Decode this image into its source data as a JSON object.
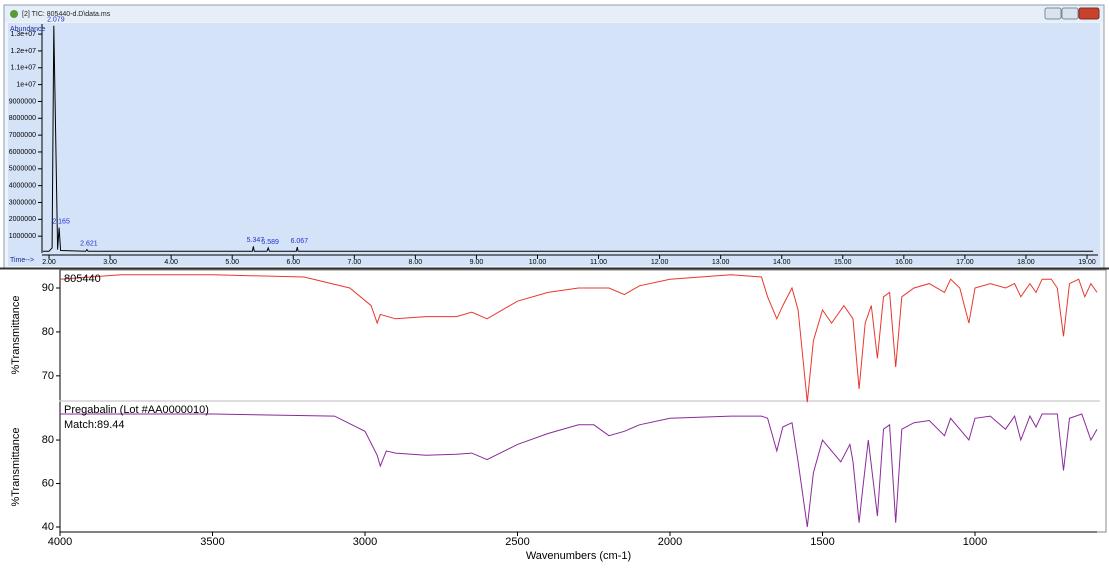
{
  "window_title": "[2] TIC: 805440-d.D\\data.ms",
  "chart_data": [
    {
      "type": "line",
      "y_label": "Abundance",
      "x_label": "Time-->",
      "xlim": [
        1.885,
        19.18
      ],
      "ylim": [
        0,
        13600000
      ],
      "xticks": [
        {
          "value": 2,
          "label": "2.00"
        },
        {
          "value": 3,
          "label": "3.00"
        },
        {
          "value": 4,
          "label": "4.00"
        },
        {
          "value": 5,
          "label": "5.00"
        },
        {
          "value": 6,
          "label": "6.00"
        },
        {
          "value": 7,
          "label": "7.00"
        },
        {
          "value": 8,
          "label": "8.00"
        },
        {
          "value": 9,
          "label": "9.00"
        },
        {
          "value": 10,
          "label": "10.00"
        },
        {
          "value": 11,
          "label": "11.00"
        },
        {
          "value": 12,
          "label": "12.00"
        },
        {
          "value": 13,
          "label": "13.00"
        },
        {
          "value": 14,
          "label": "14.00"
        },
        {
          "value": 15,
          "label": "15.00"
        },
        {
          "value": 16,
          "label": "16.00"
        },
        {
          "value": 17,
          "label": "17.00"
        },
        {
          "value": 18,
          "label": "18.00"
        },
        {
          "value": 19,
          "label": "19.00"
        }
      ],
      "yticks": [
        1000000,
        2000000,
        3000000,
        4000000,
        5000000,
        6000000,
        7000000,
        8000000,
        9000000,
        {
          "value": 10000000,
          "label": "1e+07"
        },
        {
          "value": 11000000,
          "label": "1.1e+07"
        },
        {
          "value": 12000000,
          "label": "1.2e+07"
        },
        {
          "value": 13000000,
          "label": "1.3e+07"
        }
      ],
      "series": [
        {
          "color": "#000000",
          "x": [
            1.9,
            2.0,
            2.05,
            2.079,
            2.1,
            2.14,
            2.165,
            2.19,
            2.6,
            2.621,
            2.64,
            5.33,
            5.347,
            5.36,
            5.57,
            5.589,
            5.61,
            6.05,
            6.067,
            6.08,
            19.1
          ],
          "values": [
            100000,
            100000,
            300000,
            13500000,
            9000000,
            200000,
            1500000,
            150000,
            100000,
            200000,
            100000,
            100000,
            400000,
            100000,
            100000,
            300000,
            100000,
            100000,
            350000,
            100000,
            100000
          ]
        }
      ],
      "peaks": [
        {
          "x": 2.079,
          "y": 13500000
        },
        {
          "x": 2.165,
          "y": 1500000
        },
        {
          "x": 2.621,
          "y": 200000
        },
        {
          "x": 5.347,
          "y": 400000
        },
        {
          "x": 5.589,
          "y": 300000
        },
        {
          "x": 6.067,
          "y": 350000
        }
      ]
    },
    {
      "type": "line",
      "y_label": "%Transmittance",
      "xlim": [
        4000,
        600
      ],
      "ylim": [
        64.5,
        94.1
      ],
      "yticks": [
        70,
        80,
        90
      ],
      "series": [
        {
          "name": "805440",
          "color": "#e8382e",
          "x": [
            4000,
            3800,
            3500,
            3200,
            3050,
            2980,
            2960,
            2950,
            2900,
            2800,
            2700,
            2650,
            2600,
            2500,
            2400,
            2300,
            2200,
            2150,
            2100,
            2000,
            1800,
            1700,
            1680,
            1650,
            1630,
            1600,
            1580,
            1550,
            1530,
            1500,
            1470,
            1430,
            1400,
            1380,
            1360,
            1340,
            1320,
            1300,
            1280,
            1260,
            1240,
            1200,
            1150,
            1100,
            1080,
            1050,
            1020,
            1000,
            950,
            900,
            870,
            850,
            820,
            800,
            780,
            750,
            730,
            710,
            690,
            660,
            640,
            620,
            600
          ],
          "values": [
            92,
            93,
            93,
            92.5,
            90,
            86,
            82,
            84,
            83,
            83.5,
            83.5,
            84.5,
            83,
            87,
            89,
            90,
            90,
            88.5,
            90.5,
            92,
            93,
            92.5,
            88,
            83,
            86,
            90,
            85,
            64,
            78,
            85,
            82,
            86,
            83,
            67,
            82,
            86,
            74,
            88,
            89,
            72,
            88,
            90,
            91,
            89,
            92,
            90,
            82,
            90,
            91,
            90,
            91,
            88,
            91,
            89,
            92,
            92,
            90,
            79,
            91,
            92,
            88,
            91,
            89
          ]
        }
      ]
    },
    {
      "type": "line",
      "y_label": "%Transmittance",
      "x_label": "Wavenumbers (cm-1)",
      "subtitle": "Pregabalin (Lot #AA0000010)",
      "note": "Match:89.44",
      "xlim": [
        4000,
        600
      ],
      "ylim": [
        37.7,
        97.5
      ],
      "yticks": [
        40,
        60,
        80
      ],
      "xticks": [
        4000,
        3500,
        3000,
        2500,
        2000,
        1500,
        1000
      ],
      "series": [
        {
          "color": "#8b2a9b",
          "x": [
            4000,
            3500,
            3100,
            3000,
            2960,
            2950,
            2930,
            2900,
            2800,
            2700,
            2650,
            2600,
            2500,
            2400,
            2300,
            2250,
            2200,
            2150,
            2100,
            2000,
            1800,
            1700,
            1680,
            1650,
            1630,
            1600,
            1580,
            1550,
            1530,
            1500,
            1470,
            1440,
            1410,
            1400,
            1380,
            1370,
            1350,
            1320,
            1300,
            1280,
            1260,
            1240,
            1200,
            1150,
            1100,
            1080,
            1050,
            1020,
            1000,
            950,
            900,
            870,
            850,
            820,
            800,
            780,
            730,
            710,
            690,
            650,
            620,
            600
          ],
          "values": [
            92,
            92,
            91,
            84,
            73,
            68,
            75,
            74,
            73,
            73.5,
            74,
            71,
            78,
            83,
            87,
            87,
            82,
            84,
            87,
            90,
            91,
            91,
            90,
            75,
            86,
            88,
            70,
            40,
            65,
            80,
            75,
            70,
            78,
            70,
            42,
            55,
            80,
            45,
            85,
            87,
            42,
            85,
            88,
            89,
            82,
            90,
            85,
            80,
            90,
            91,
            85,
            91,
            80,
            91,
            86,
            92,
            92,
            66,
            90,
            92,
            80,
            85
          ]
        }
      ]
    }
  ]
}
